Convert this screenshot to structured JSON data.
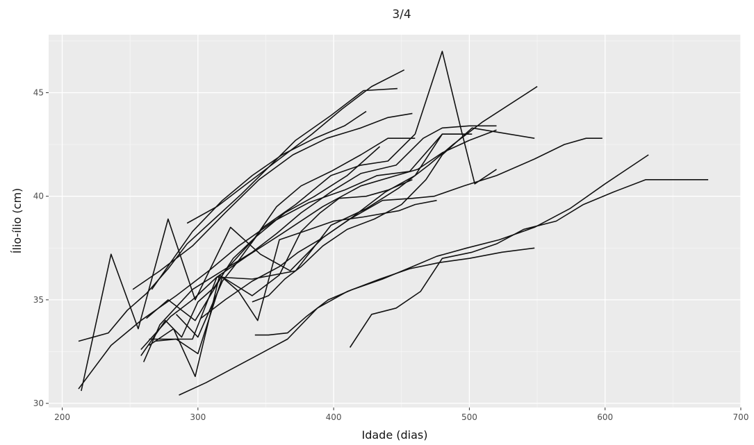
{
  "chart_data": {
    "type": "line",
    "title": "3/4",
    "xlabel": "Idade (dias)",
    "ylabel": "Ílio-ílio (cm)",
    "xlim": [
      190,
      700
    ],
    "ylim": [
      29.8,
      47.8
    ],
    "x_ticks": [
      200,
      300,
      400,
      500,
      600,
      700
    ],
    "x_tick_labels": [
      "200",
      "300",
      "400",
      "500",
      "600",
      "700"
    ],
    "y_ticks": [
      30,
      35,
      40,
      45
    ],
    "y_tick_labels": [
      "30",
      "35",
      "40",
      "45"
    ],
    "grid": true,
    "legend": "none",
    "series": [
      {
        "x": [
          212,
          234,
          248,
          262,
          278,
          292,
          312,
          332,
          352,
          372,
          398,
          422,
          447
        ],
        "y": [
          33.0,
          33.4,
          34.5,
          35.3,
          36.5,
          37.7,
          38.9,
          40.1,
          41.4,
          42.7,
          43.9,
          45.1,
          45.2
        ]
      },
      {
        "x": [
          252,
          272,
          296,
          320,
          345,
          370,
          395,
          420,
          440,
          458
        ],
        "y": [
          35.5,
          36.4,
          37.6,
          39.2,
          40.8,
          42.0,
          42.8,
          43.3,
          43.8,
          44.0
        ]
      },
      {
        "x": [
          266,
          282,
          296,
          318,
          340,
          362,
          386,
          408,
          424
        ],
        "y": [
          35.5,
          37.0,
          38.3,
          39.8,
          41.0,
          42.0,
          42.8,
          43.4,
          44.1
        ]
      },
      {
        "x": [
          292,
          314,
          336,
          360,
          384,
          406,
          428,
          452
        ],
        "y": [
          38.7,
          39.5,
          40.6,
          41.8,
          43.0,
          44.2,
          45.3,
          46.1
        ]
      },
      {
        "x": [
          212,
          236,
          258,
          284,
          308,
          330,
          356,
          382,
          408,
          432,
          456,
          480,
          492,
          500
        ],
        "y": [
          30.7,
          32.8,
          34.0,
          35.2,
          36.4,
          37.6,
          38.8,
          39.7,
          40.3,
          41.0,
          41.2,
          43.0,
          43.0,
          43.0
        ]
      },
      {
        "x": [
          214,
          236,
          256,
          278,
          298,
          324,
          346,
          368,
          392,
          414,
          438,
          460,
          480,
          502
        ],
        "y": [
          30.6,
          37.2,
          33.6,
          38.9,
          35.0,
          38.5,
          37.2,
          36.4,
          38.0,
          39.0,
          40.2,
          41.0,
          43.0,
          43.0
        ]
      },
      {
        "x": [
          258,
          276,
          288,
          300,
          312,
          326,
          342,
          358,
          376,
          398,
          420,
          440,
          460
        ],
        "y": [
          32.3,
          34.0,
          33.2,
          34.9,
          35.6,
          37.0,
          38.0,
          39.5,
          40.5,
          41.2,
          42.0,
          42.8,
          42.8
        ]
      },
      {
        "x": [
          258,
          280,
          296,
          314,
          336,
          362,
          392,
          420,
          446,
          462,
          480,
          500,
          520
        ],
        "y": [
          32.6,
          34.2,
          35.0,
          36.1,
          37.1,
          38.2,
          39.5,
          40.5,
          41.0,
          41.3,
          42.1,
          42.7,
          43.2
        ]
      },
      {
        "x": [
          262,
          278,
          298,
          320,
          342,
          364,
          386,
          410,
          434
        ],
        "y": [
          34.1,
          35.0,
          34.0,
          36.4,
          38.0,
          39.2,
          40.0,
          41.0,
          42.4
        ]
      },
      {
        "x": [
          260,
          272,
          296,
          318,
          340,
          358,
          376,
          400,
          420,
          446,
          466,
          480,
          500,
          520
        ],
        "y": [
          32.0,
          33.8,
          35.5,
          36.4,
          37.3,
          38.2,
          39.2,
          40.3,
          41.1,
          41.5,
          42.8,
          43.3,
          43.4,
          43.4
        ]
      },
      {
        "x": [
          284,
          300,
          318,
          330,
          348,
          372,
          398,
          420,
          440,
          460,
          480,
          494,
          504,
          520
        ],
        "y": [
          34.3,
          33.2,
          35.9,
          36.9,
          38.5,
          39.6,
          41.0,
          41.5,
          41.7,
          43.0,
          47.0,
          43.2,
          40.6,
          41.3
        ]
      },
      {
        "x": [
          264,
          278,
          296,
          314,
          340,
          372,
          398,
          424,
          448,
          470,
          488,
          510,
          550
        ],
        "y": [
          33.1,
          33.1,
          33.1,
          36.1,
          36.0,
          36.4,
          38.6,
          39.4,
          40.4,
          41.5,
          42.5,
          43.6,
          45.3
        ]
      },
      {
        "x": [
          268,
          284,
          300,
          318,
          340,
          360,
          376,
          390,
          404,
          424,
          440,
          458
        ],
        "y": [
          33.0,
          33.1,
          32.4,
          36.1,
          35.2,
          36.2,
          38.3,
          39.2,
          39.9,
          40.0,
          40.3,
          40.8
        ]
      },
      {
        "x": [
          340,
          352,
          364,
          376,
          392,
          410,
          430,
          450,
          468,
          480,
          502,
          548
        ],
        "y": [
          34.9,
          35.2,
          36.0,
          36.6,
          37.6,
          38.4,
          38.9,
          39.6,
          40.8,
          42.0,
          43.3,
          42.8
        ]
      },
      {
        "x": [
          264,
          282,
          298,
          316,
          330,
          344,
          360,
          378,
          400,
          422,
          448,
          460,
          476
        ],
        "y": [
          32.8,
          33.6,
          31.3,
          36.2,
          35.4,
          34.0,
          37.9,
          38.3,
          38.8,
          39.0,
          39.3,
          39.6,
          39.8
        ]
      },
      {
        "x": [
          302,
          320,
          340,
          360,
          374,
          392,
          412,
          436,
          458,
          474,
          496,
          520,
          548,
          570,
          586,
          598
        ],
        "y": [
          34.1,
          35.0,
          35.9,
          36.6,
          37.3,
          38.0,
          38.9,
          39.8,
          39.9,
          40.0,
          40.5,
          41.0,
          41.8,
          42.5,
          42.8,
          42.8
        ]
      },
      {
        "x": [
          342,
          352,
          366,
          380,
          396,
          414,
          436,
          458,
          476,
          498,
          522,
          548,
          574,
          600,
          632
        ],
        "y": [
          33.3,
          33.3,
          33.4,
          34.2,
          35.0,
          35.5,
          36.0,
          36.6,
          37.1,
          37.5,
          37.9,
          38.5,
          39.4,
          40.6,
          42.0
        ]
      },
      {
        "x": [
          286,
          306,
          326,
          346,
          366,
          388,
          410,
          434,
          456,
          478,
          500,
          524,
          548
        ],
        "y": [
          30.4,
          31.0,
          31.7,
          32.4,
          33.1,
          34.6,
          35.4,
          36.0,
          36.5,
          36.8,
          37.0,
          37.3,
          37.5
        ]
      },
      {
        "x": [
          412,
          428,
          446,
          464,
          480,
          502,
          520,
          540,
          564,
          584,
          606,
          630,
          676
        ],
        "y": [
          32.7,
          34.3,
          34.6,
          35.4,
          37.0,
          37.3,
          37.7,
          38.4,
          38.8,
          39.6,
          40.2,
          40.8,
          40.8
        ]
      }
    ]
  }
}
